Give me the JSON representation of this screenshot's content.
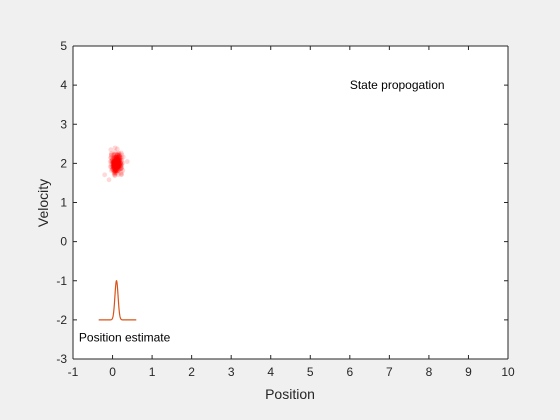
{
  "chart_data": {
    "type": "scatter",
    "title": "",
    "xlabel": "Position",
    "ylabel": "Velocity",
    "xlim": [
      -1,
      10
    ],
    "ylim": [
      -3,
      5
    ],
    "xticks": [
      "-1",
      "0",
      "1",
      "2",
      "3",
      "4",
      "5",
      "6",
      "7",
      "8",
      "9",
      "10"
    ],
    "yticks": [
      "-3",
      "-2",
      "-1",
      "0",
      "1",
      "2",
      "3",
      "4",
      "5"
    ],
    "grid": false,
    "annotations": [
      {
        "text": "State propogation",
        "x": 6,
        "y": 3.9
      },
      {
        "text": "Position estimate",
        "x": -0.85,
        "y": -2.55
      }
    ],
    "particle_cloud": {
      "center": [
        0.1,
        2.0
      ],
      "spread": [
        0.07,
        0.12
      ],
      "color": "#ff0000"
    },
    "density_curve": {
      "color": "#d95319",
      "baseline_y": -2.0,
      "x_range": [
        -0.35,
        0.6
      ],
      "peak_x": 0.1,
      "peak_y": -1.0,
      "sigma": 0.04
    }
  }
}
